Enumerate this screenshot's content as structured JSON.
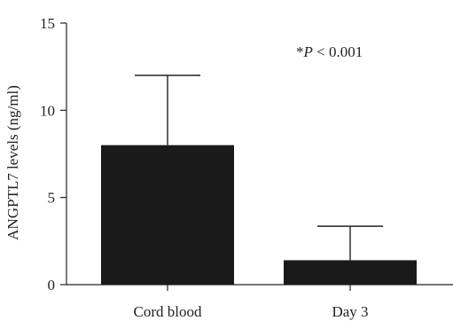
{
  "chart_data": {
    "type": "bar",
    "categories": [
      "Cord blood",
      "Day 3"
    ],
    "values": [
      8.0,
      1.4
    ],
    "error_upper": [
      12.0,
      3.35
    ],
    "ylabel": "ANGPTL7 levels (ng/ml)",
    "xlabel": "",
    "ylim": [
      0,
      15
    ],
    "yticks": [
      0,
      5,
      10,
      15
    ],
    "grid": false,
    "bar_color": "#1a1a1a",
    "annotation": {
      "star": "*",
      "p": "P",
      "rest": " < 0.001"
    }
  }
}
